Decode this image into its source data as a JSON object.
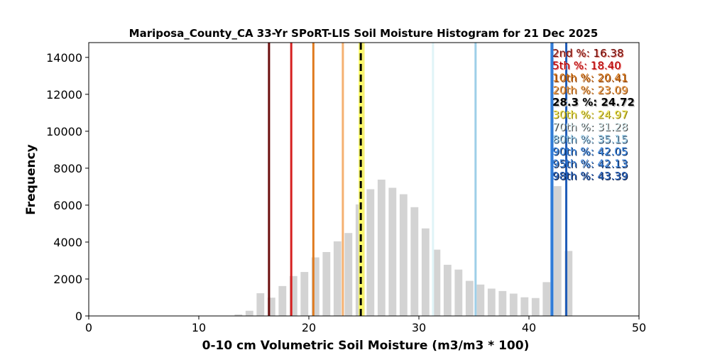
{
  "chart_data": {
    "type": "bar",
    "title": "Mariposa_County_CA 33-Yr SPoRT-LIS Soil Moisture Histogram for 21 Dec 2025",
    "xlabel": "0-10 cm Volumetric Soil Moisture (m3/m3 * 100)",
    "ylabel": "Frequency",
    "xlim": [
      0,
      50
    ],
    "ylim": [
      0,
      14800
    ],
    "xticks": [
      0,
      10,
      20,
      30,
      40,
      50
    ],
    "yticks": [
      0,
      2000,
      4000,
      6000,
      8000,
      10000,
      12000,
      14000
    ],
    "grid": false,
    "bin_width": 1.0,
    "bar_color": "#d3d3d3",
    "bins": [
      {
        "x": 13.6,
        "value": 80
      },
      {
        "x": 14.6,
        "value": 280
      },
      {
        "x": 15.6,
        "value": 1230
      },
      {
        "x": 16.6,
        "value": 990
      },
      {
        "x": 17.6,
        "value": 1620
      },
      {
        "x": 18.6,
        "value": 2160
      },
      {
        "x": 19.6,
        "value": 2380
      },
      {
        "x": 20.6,
        "value": 3170
      },
      {
        "x": 21.6,
        "value": 3460
      },
      {
        "x": 22.6,
        "value": 4040
      },
      {
        "x": 23.6,
        "value": 4490
      },
      {
        "x": 24.6,
        "value": 6040
      },
      {
        "x": 25.6,
        "value": 6860
      },
      {
        "x": 26.6,
        "value": 7380
      },
      {
        "x": 27.6,
        "value": 6940
      },
      {
        "x": 28.6,
        "value": 6590
      },
      {
        "x": 29.6,
        "value": 5890
      },
      {
        "x": 30.6,
        "value": 4740
      },
      {
        "x": 31.6,
        "value": 3590
      },
      {
        "x": 32.6,
        "value": 2770
      },
      {
        "x": 33.6,
        "value": 2510
      },
      {
        "x": 34.6,
        "value": 1900
      },
      {
        "x": 35.6,
        "value": 1700
      },
      {
        "x": 36.6,
        "value": 1480
      },
      {
        "x": 37.6,
        "value": 1350
      },
      {
        "x": 38.6,
        "value": 1210
      },
      {
        "x": 39.6,
        "value": 1010
      },
      {
        "x": 40.6,
        "value": 970
      },
      {
        "x": 41.6,
        "value": 1830
      },
      {
        "x": 42.6,
        "value": 7030
      },
      {
        "x": 43.6,
        "value": 3520
      }
    ],
    "percentile_lines": [
      {
        "label": "2nd %: 16.38",
        "value": 16.38,
        "color": "#6b0d0d",
        "dashed": false
      },
      {
        "label": "5th %: 18.40",
        "value": 18.4,
        "color": "#d62020",
        "dashed": false
      },
      {
        "label": "10th %: 20.41",
        "value": 20.41,
        "color": "#e07b20",
        "dashed": false
      },
      {
        "label": "20th %: 23.09",
        "value": 23.09,
        "color": "#f5b070",
        "dashed": false
      },
      {
        "label": "28.3 %: 24.72",
        "value": 24.72,
        "color": "#000000",
        "dashed": true
      },
      {
        "label": "30th %: 24.97",
        "value": 24.97,
        "color": "#f7f07a",
        "dashed": false
      },
      {
        "label": "70th %: 31.28",
        "value": 31.28,
        "color": "#e0f4f8",
        "dashed": false
      },
      {
        "label": "80th %: 35.15",
        "value": 35.15,
        "color": "#9ecfe8",
        "dashed": false
      },
      {
        "label": "90th %: 42.05",
        "value": 42.05,
        "color": "#3a86e0",
        "dashed": false
      },
      {
        "label": "95th %: 42.13",
        "value": 42.13,
        "color": "#2f7ad6",
        "dashed": false
      },
      {
        "label": "98th %: 43.39",
        "value": 43.39,
        "color": "#1f5cb8",
        "dashed": false
      }
    ],
    "legend": [
      {
        "text": "2nd %: 16.38",
        "fill": "#6b0d0d",
        "shadow": "#e07060"
      },
      {
        "text": "5th %: 18.40",
        "fill": "#b30000",
        "shadow": "#e87070"
      },
      {
        "text": "10th %: 20.41",
        "fill": "#d07010",
        "shadow": "#8a3a00"
      },
      {
        "text": "20th %: 23.09",
        "fill": "#f0a050",
        "shadow": "#8a4a10"
      },
      {
        "text": "28.3 %: 24.72",
        "fill": "#000000",
        "shadow": "#bbbbbb",
        "bold": true
      },
      {
        "text": "30th %: 24.97",
        "fill": "#f0e860",
        "shadow": "#8a7a00"
      },
      {
        "text": "70th %: 31.28",
        "fill": "#e0f4f8",
        "shadow": "#444444"
      },
      {
        "text": "80th %: 35.15",
        "fill": "#9ecfe8",
        "shadow": "#2a4a6a"
      },
      {
        "text": "90th %: 42.05",
        "fill": "#3a86e0",
        "shadow": "#0c2a5a"
      },
      {
        "text": "95th %: 42.13",
        "fill": "#2f7ad6",
        "shadow": "#0a2250"
      },
      {
        "text": "98th %: 43.39",
        "fill": "#1f5cb8",
        "shadow": "#081a44"
      }
    ],
    "legend_placement": "top-right, inside axes"
  }
}
